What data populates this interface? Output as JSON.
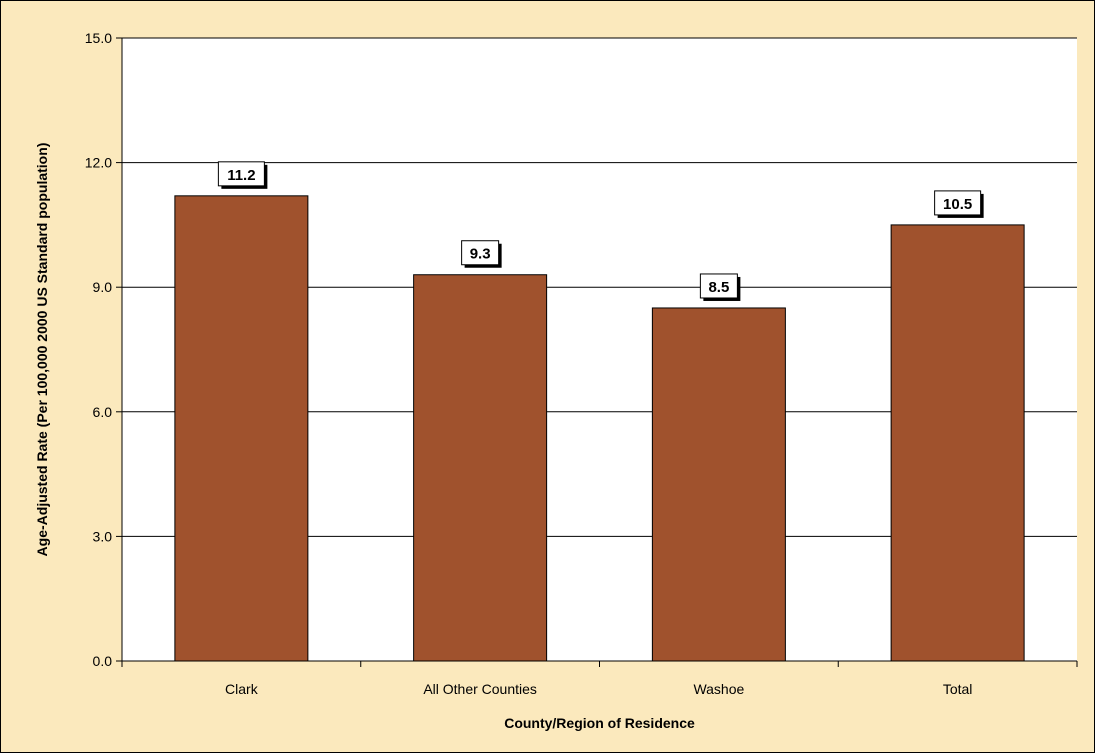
{
  "chart_data": {
    "type": "bar",
    "categories": [
      "Clark",
      "All Other Counties",
      "Washoe",
      "Total"
    ],
    "values": [
      11.2,
      9.3,
      8.5,
      10.5
    ],
    "data_labels": [
      "11.2",
      "9.3",
      "8.5",
      "10.5"
    ],
    "title": "",
    "xlabel": "County/Region of Residence",
    "ylabel": "Age-Adjusted Rate (Per 100,000 2000 US Standard population)",
    "ylim": [
      0,
      15
    ],
    "yticks": [
      "0.0",
      "3.0",
      "6.0",
      "9.0",
      "12.0",
      "15.0"
    ],
    "grid": true,
    "legend": "none"
  },
  "colors": {
    "background": "#fbe9bd",
    "plot_area": "#ffffff",
    "bar_fill": "#a0522d",
    "bar_stroke": "#000000",
    "label_box": "#ffffff"
  }
}
